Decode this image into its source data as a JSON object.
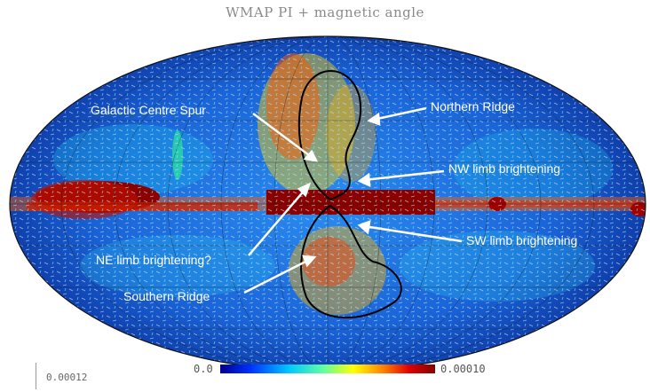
{
  "title": "WMAP PI + magnetic angle",
  "colorbar": {
    "min_label": "0.0",
    "max_label": "0.00010",
    "colors": [
      "#00008f",
      "#0030ff",
      "#00c8ff",
      "#60ffa0",
      "#ffff00",
      "#ff8000",
      "#e00000",
      "#800000"
    ]
  },
  "scale_note": "0.00012",
  "annotations": [
    {
      "id": "gcs",
      "text": "Galactic Centre Spur"
    },
    {
      "id": "nr",
      "text": "Northern Ridge"
    },
    {
      "id": "nwlb",
      "text": "NW limb brightening"
    },
    {
      "id": "nelb",
      "text": "NE limb brightening?"
    },
    {
      "id": "swlb",
      "text": "SW limb brightening"
    },
    {
      "id": "sr",
      "text": "Southern Ridge"
    }
  ],
  "map": {
    "projection": "Mollweide",
    "background_color": "#1e74e6",
    "plane_color": "#8a0000"
  }
}
